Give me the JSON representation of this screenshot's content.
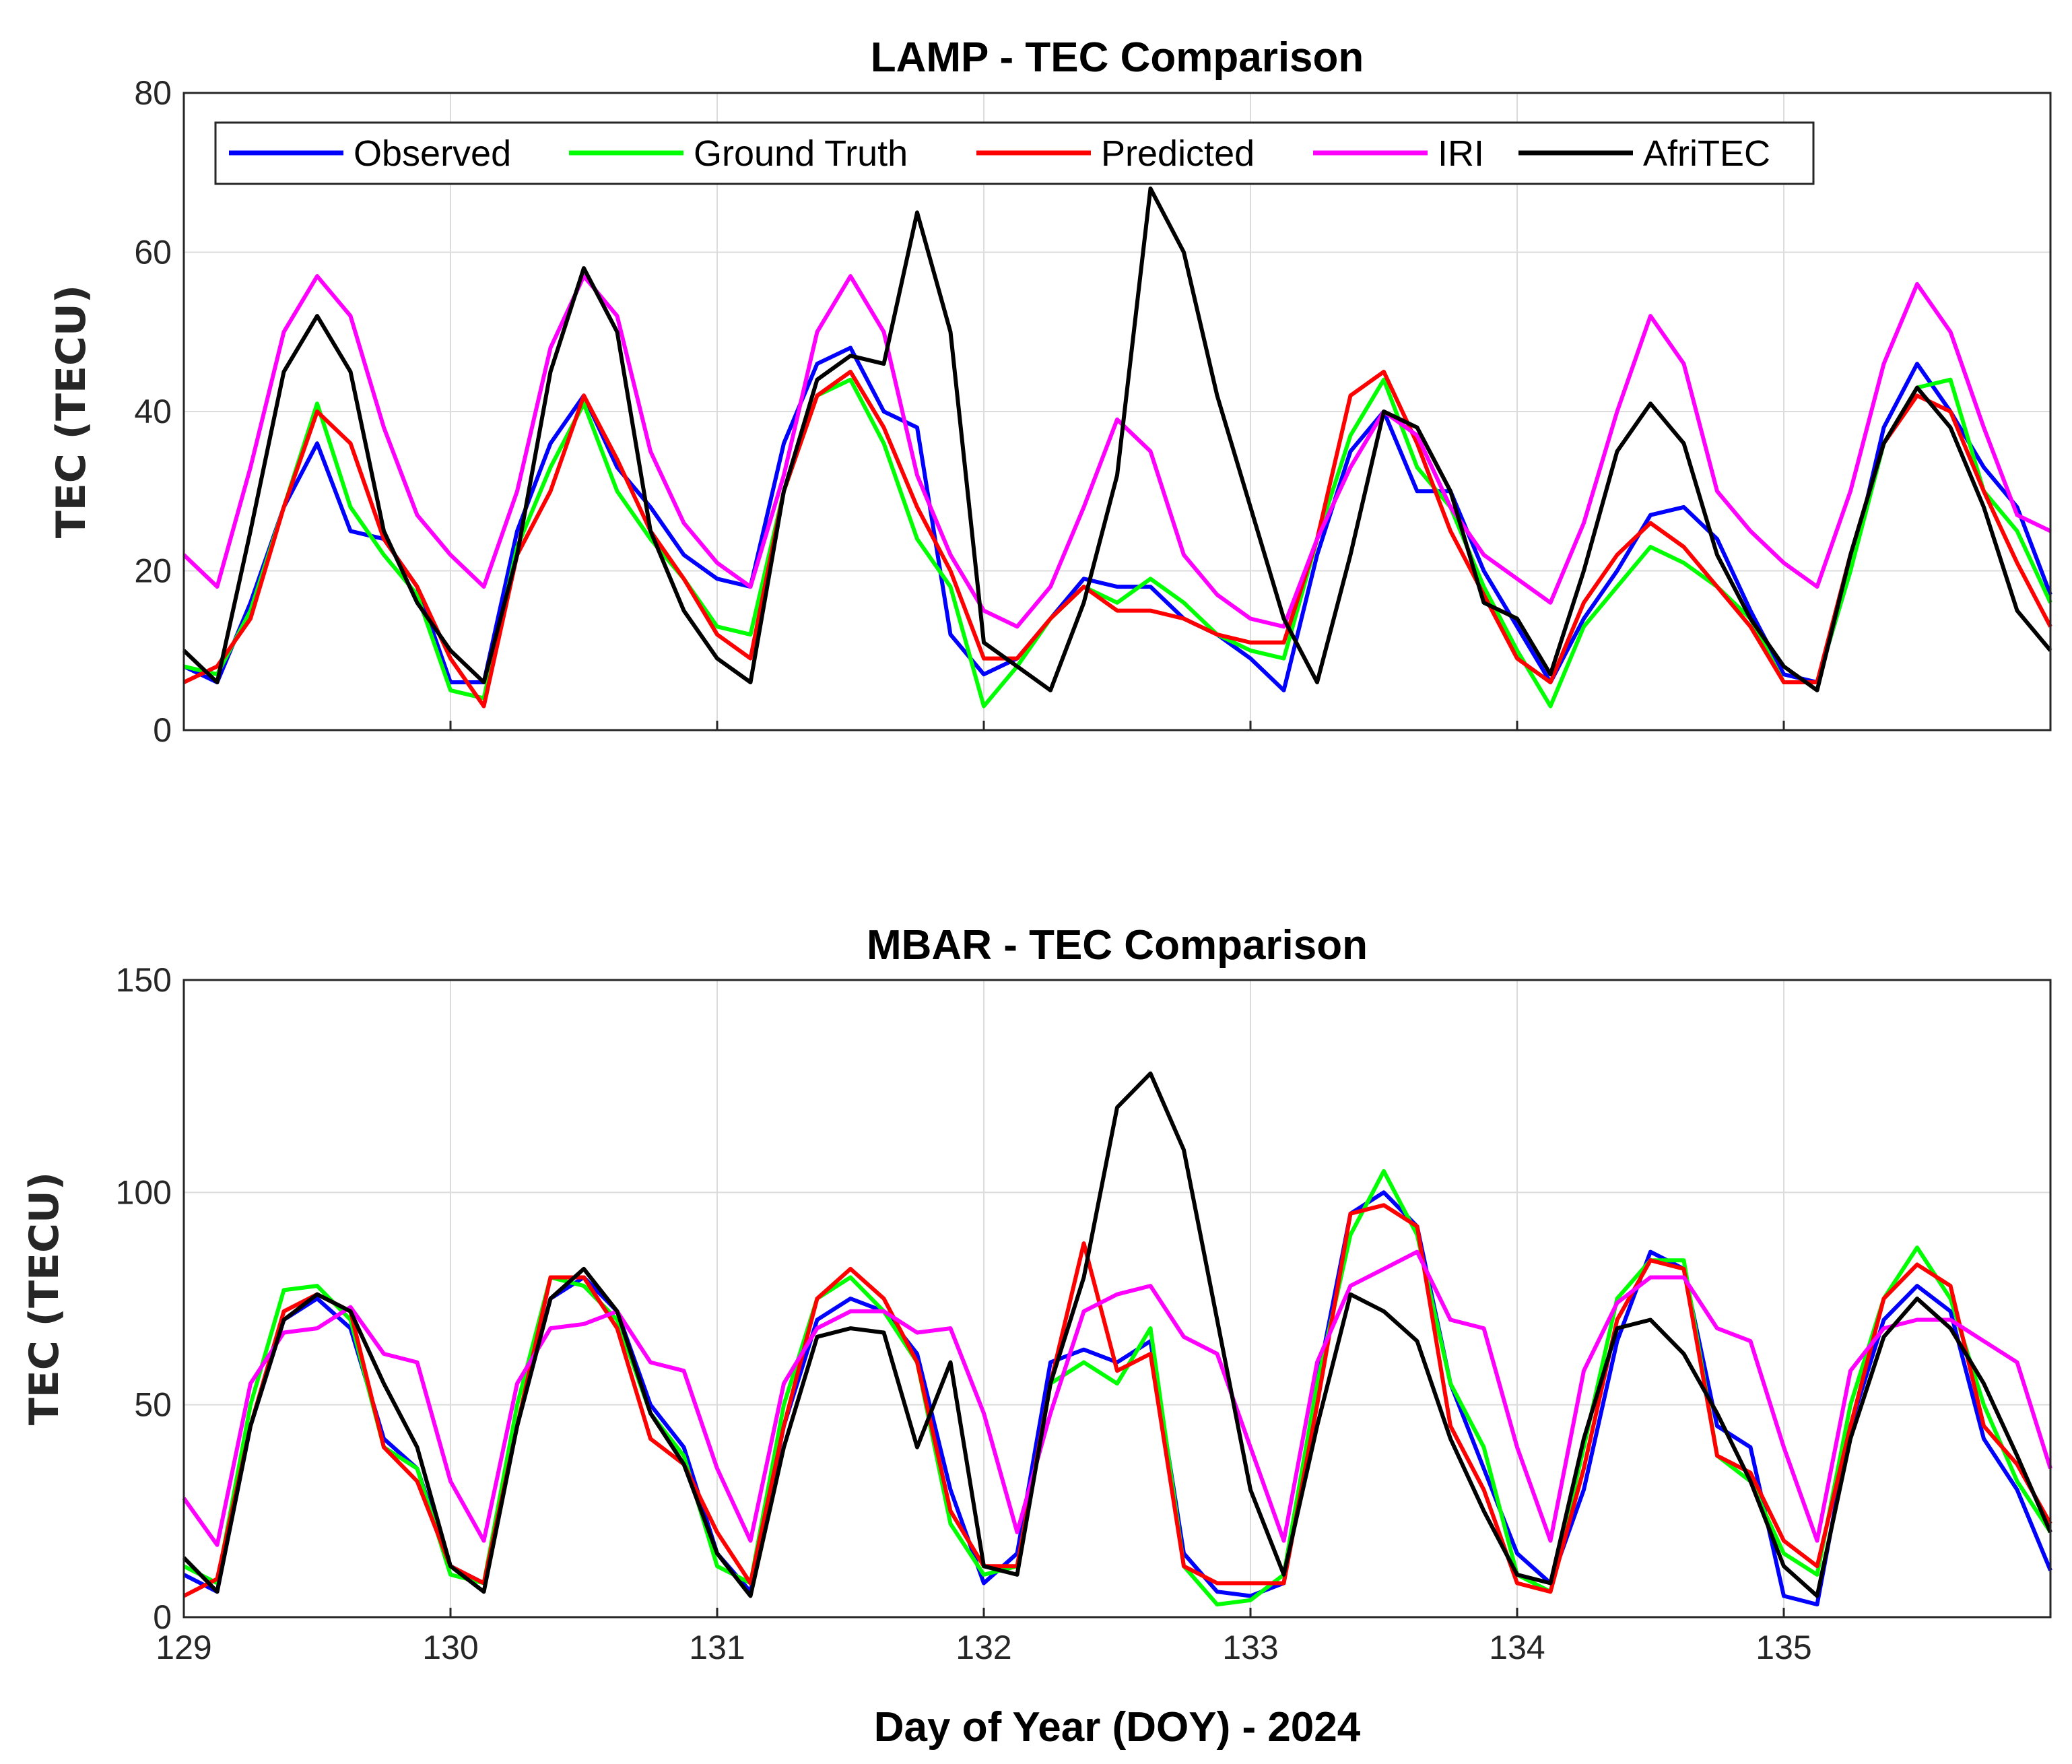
{
  "chart_data": [
    {
      "type": "line",
      "title": "LAMP - TEC Comparison",
      "ylabel": "TEC (TECU)",
      "xlabel": "",
      "xlim": [
        129,
        136
      ],
      "ylim": [
        0,
        80
      ],
      "yticks": [
        0,
        20,
        40,
        60,
        80
      ],
      "xticks": [
        129,
        130,
        131,
        132,
        133,
        134,
        135
      ],
      "grid": true,
      "legend": "top-inside",
      "x_start": 129,
      "x_step": 0.125,
      "series": [
        {
          "name": "Observed",
          "color": "#0000ff",
          "values": [
            8,
            6,
            16,
            28,
            36,
            25,
            24,
            18,
            6,
            6,
            25,
            36,
            42,
            33,
            28,
            22,
            19,
            18,
            36,
            46,
            48,
            40,
            38,
            12,
            7,
            9,
            14,
            19,
            18,
            18,
            14,
            12,
            9,
            5,
            22,
            35,
            40,
            30,
            30,
            20,
            13,
            6,
            14,
            20,
            27,
            28,
            24,
            15,
            7,
            6,
            20,
            38,
            46,
            40,
            33,
            28,
            17
          ]
        },
        {
          "name": "Ground Truth",
          "color": "#00ff00",
          "values": [
            8,
            7,
            15,
            28,
            41,
            28,
            22,
            17,
            5,
            4,
            23,
            33,
            41,
            30,
            24,
            19,
            13,
            12,
            30,
            42,
            44,
            36,
            24,
            18,
            3,
            8,
            14,
            18,
            16,
            19,
            16,
            12,
            10,
            9,
            24,
            37,
            44,
            33,
            28,
            18,
            10,
            3,
            13,
            18,
            23,
            21,
            18,
            14,
            6,
            6,
            20,
            36,
            43,
            44,
            30,
            25,
            16
          ]
        },
        {
          "name": "Predicted",
          "color": "#ff0000",
          "values": [
            6,
            8,
            14,
            28,
            40,
            36,
            24,
            18,
            9,
            3,
            22,
            30,
            42,
            34,
            25,
            19,
            12,
            9,
            30,
            42,
            45,
            38,
            28,
            20,
            9,
            9,
            14,
            18,
            15,
            15,
            14,
            12,
            11,
            11,
            24,
            42,
            45,
            36,
            25,
            17,
            9,
            6,
            16,
            22,
            26,
            23,
            18,
            13,
            6,
            6,
            22,
            36,
            42,
            40,
            30,
            21,
            13
          ]
        },
        {
          "name": "IRI",
          "color": "#ff00ff",
          "values": [
            22,
            18,
            33,
            50,
            57,
            52,
            38,
            27,
            22,
            18,
            30,
            48,
            57,
            52,
            35,
            26,
            21,
            18,
            32,
            50,
            57,
            50,
            32,
            22,
            15,
            13,
            18,
            28,
            39,
            35,
            22,
            17,
            14,
            13,
            24,
            33,
            40,
            37,
            28,
            22,
            19,
            16,
            26,
            40,
            52,
            46,
            30,
            25,
            21,
            18,
            30,
            46,
            56,
            50,
            38,
            27,
            25
          ]
        },
        {
          "name": "AfriTEC",
          "color": "#000000",
          "values": [
            10,
            6,
            25,
            45,
            52,
            45,
            25,
            16,
            10,
            6,
            22,
            45,
            58,
            50,
            25,
            15,
            9,
            6,
            30,
            44,
            47,
            46,
            65,
            50,
            11,
            8,
            5,
            16,
            32,
            68,
            60,
            42,
            28,
            14,
            6,
            22,
            40,
            38,
            30,
            16,
            14,
            7,
            20,
            35,
            41,
            36,
            22,
            14,
            8,
            5,
            22,
            36,
            43,
            38,
            28,
            15,
            10
          ]
        }
      ]
    },
    {
      "type": "line",
      "title": "MBAR - TEC Comparison",
      "ylabel": "TEC (TECU)",
      "xlabel": "Day of Year (DOY) - 2024",
      "xlim": [
        129,
        136
      ],
      "ylim": [
        0,
        150
      ],
      "yticks": [
        0,
        50,
        100,
        150
      ],
      "xticks": [
        129,
        130,
        131,
        132,
        133,
        134,
        135
      ],
      "grid": true,
      "legend": "none",
      "x_start": 129,
      "x_step": 0.125,
      "series": [
        {
          "name": "Observed",
          "color": "#0000ff",
          "values": [
            10,
            6,
            45,
            70,
            75,
            68,
            42,
            35,
            12,
            8,
            45,
            75,
            80,
            72,
            50,
            40,
            15,
            6,
            45,
            70,
            75,
            72,
            62,
            30,
            8,
            15,
            60,
            63,
            60,
            65,
            15,
            6,
            5,
            8,
            55,
            95,
            100,
            92,
            55,
            35,
            15,
            8,
            30,
            65,
            86,
            82,
            45,
            40,
            5,
            3,
            45,
            70,
            78,
            72,
            42,
            30,
            11
          ]
        },
        {
          "name": "Ground Truth",
          "color": "#00ff00",
          "values": [
            12,
            8,
            50,
            77,
            78,
            70,
            40,
            35,
            10,
            8,
            50,
            80,
            78,
            70,
            48,
            38,
            12,
            8,
            50,
            75,
            80,
            72,
            60,
            22,
            10,
            12,
            55,
            60,
            55,
            68,
            12,
            3,
            4,
            10,
            55,
            90,
            105,
            90,
            55,
            40,
            10,
            6,
            40,
            75,
            84,
            84,
            38,
            32,
            15,
            10,
            50,
            75,
            87,
            75,
            50,
            32,
            20
          ]
        },
        {
          "name": "Predicted",
          "color": "#ff0000",
          "values": [
            5,
            9,
            45,
            72,
            76,
            72,
            40,
            32,
            12,
            8,
            45,
            80,
            80,
            68,
            42,
            36,
            20,
            8,
            45,
            75,
            82,
            75,
            60,
            25,
            12,
            12,
            55,
            88,
            58,
            62,
            12,
            8,
            8,
            8,
            50,
            95,
            97,
            92,
            45,
            30,
            8,
            6,
            35,
            70,
            84,
            82,
            38,
            34,
            18,
            12,
            45,
            75,
            83,
            78,
            45,
            36,
            22
          ]
        },
        {
          "name": "IRI",
          "color": "#ff00ff",
          "values": [
            28,
            17,
            55,
            67,
            68,
            73,
            62,
            60,
            32,
            18,
            55,
            68,
            69,
            72,
            60,
            58,
            35,
            18,
            55,
            68,
            72,
            72,
            67,
            68,
            48,
            20,
            48,
            72,
            76,
            78,
            66,
            62,
            40,
            18,
            60,
            78,
            82,
            86,
            70,
            68,
            40,
            18,
            58,
            74,
            80,
            80,
            68,
            65,
            40,
            18,
            58,
            68,
            70,
            70,
            65,
            60,
            35
          ]
        },
        {
          "name": "AfriTEC",
          "color": "#000000",
          "values": [
            14,
            6,
            45,
            70,
            76,
            72,
            55,
            40,
            12,
            6,
            45,
            75,
            82,
            72,
            48,
            36,
            15,
            5,
            40,
            66,
            68,
            67,
            40,
            60,
            12,
            10,
            55,
            80,
            120,
            128,
            110,
            70,
            30,
            10,
            45,
            76,
            72,
            65,
            42,
            25,
            10,
            8,
            42,
            68,
            70,
            62,
            48,
            32,
            12,
            5,
            42,
            66,
            75,
            68,
            55,
            38,
            20
          ]
        }
      ]
    }
  ]
}
